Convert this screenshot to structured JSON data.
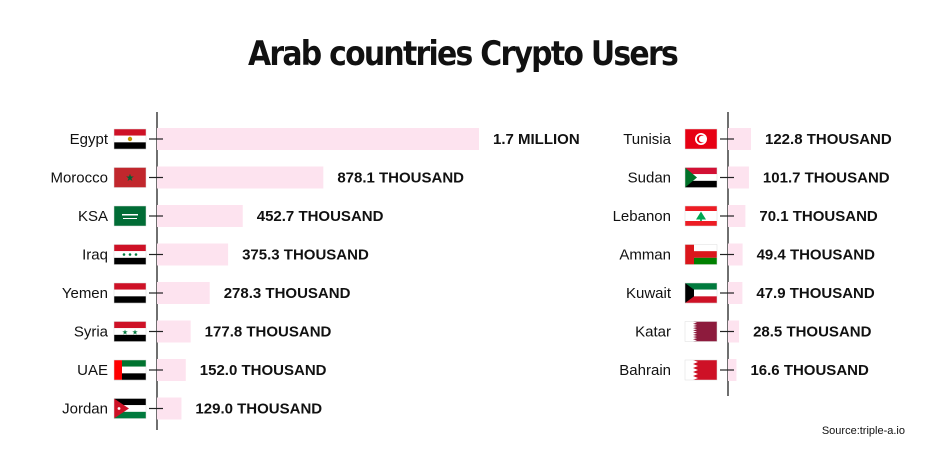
{
  "title": "Arab countries Crypto Users",
  "source": "Source:triple-a.io",
  "colors": {
    "bar": "#fde3ef",
    "axis": "#222222",
    "text": "#111111"
  },
  "chart_data": {
    "type": "bar",
    "orientation": "horizontal",
    "title": "Arab countries Crypto Users",
    "unit": "users",
    "panels": [
      {
        "categories": [
          "Egypt",
          "Morocco",
          "KSA",
          "Iraq",
          "Yemen",
          "Syria",
          "UAE",
          "Jordan"
        ],
        "flags": [
          "egypt",
          "morocco",
          "ksa",
          "iraq",
          "yemen",
          "syria",
          "uae",
          "jordan"
        ],
        "values": [
          1700000,
          878100,
          452700,
          375300,
          278300,
          177800,
          152000,
          129000
        ],
        "labels": [
          "1.7 MILLION",
          "878.1 THOUSAND",
          "452.7 THOUSAND",
          "375.3 THOUSAND",
          "278.3 THOUSAND",
          "177.8 THOUSAND",
          "152.0 THOUSAND",
          "129.0 THOUSAND"
        ]
      },
      {
        "categories": [
          "Tunisia",
          "Sudan",
          "Lebanon",
          "Amman",
          "Kuwait",
          "Katar",
          "Bahrain"
        ],
        "flags": [
          "tunisia",
          "sudan",
          "lebanon",
          "oman",
          "kuwait",
          "qatar",
          "bahrain"
        ],
        "values": [
          122800,
          101700,
          70100,
          49400,
          47900,
          28500,
          16600
        ],
        "labels": [
          "122.8 THOUSAND",
          "101.7 THOUSAND",
          "70.1 THOUSAND",
          "49.4 THOUSAND",
          "47.9 THOUSAND",
          "28.5 THOUSAND",
          "16.6 THOUSAND"
        ]
      }
    ]
  }
}
